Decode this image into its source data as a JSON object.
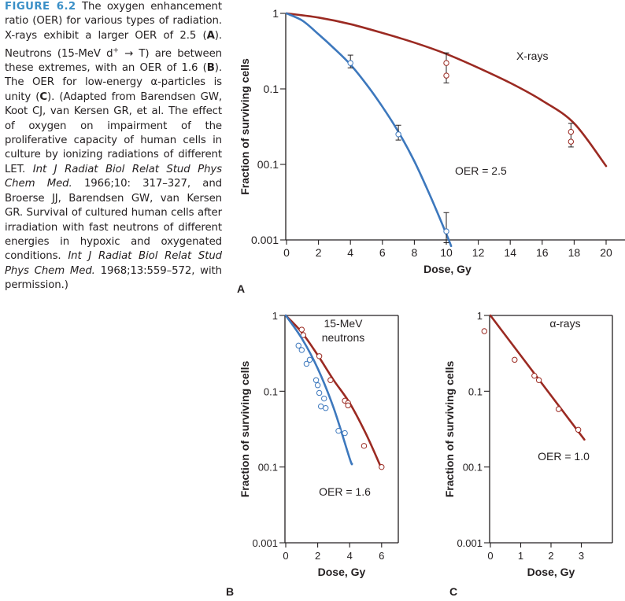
{
  "caption": {
    "figure_label": "FIGURE 6.2",
    "parts": [
      {
        "t": " The oxygen enhancement ratio (OER) for various types of radiation. X-rays exhibit a larger OER of 2.5 ("
      },
      {
        "t": "A",
        "b": true
      },
      {
        "t": "). Neutrons (15-MeV d"
      },
      {
        "t": "+",
        "sup": true
      },
      {
        "t": " → T) are between these extremes, with an OER of 1.6 ("
      },
      {
        "t": "B",
        "b": true
      },
      {
        "t": "). The OER for low-energy α-particles is unity ("
      },
      {
        "t": "C",
        "b": true
      },
      {
        "t": "). (Adapted from Barendsen GW, Koot CJ, van Kersen GR, et al. The effect of oxygen on impairment of the proliferative capacity of human cells in culture by ionizing radiations of different LET. "
      },
      {
        "t": "Int J Radiat Biol Relat Stud Phys Chem Med.",
        "i": true
      },
      {
        "t": " 1966;10: 317–327, and Broerse JJ, Barendsen GW, van Kersen GR. Survival of cultured human cells after irradiation with fast neutrons of different energies in hypoxic and oxygenated conditions. "
      },
      {
        "t": "Int J Radiat Biol Relat Stud Phys Chem Med.",
        "i": true
      },
      {
        "t": " 1968;13:559–572, with permission.)"
      }
    ]
  },
  "colors": {
    "red": "#9b2a22",
    "blue": "#3d78bd",
    "axis": "#231f20"
  },
  "chart_data": [
    {
      "panel": "A",
      "type": "line",
      "xlabel": "Dose, Gy",
      "ylabel": "Fraction of surviving cells",
      "xlim": [
        0,
        21
      ],
      "ylim": [
        0.001,
        1
      ],
      "log_y": true,
      "x_ticks": [
        "0",
        "2",
        "4",
        "6",
        "8",
        "10",
        "12",
        "14",
        "16",
        "18",
        "20"
      ],
      "y_ticks": [
        "1",
        "0.1",
        "00.1",
        "0.001"
      ],
      "annotations": [
        "X-rays",
        "OER = 2.5"
      ],
      "series": [
        {
          "color": "red",
          "curve": [
            [
              0,
              1
            ],
            [
              2,
              0.88
            ],
            [
              4,
              0.72
            ],
            [
              6,
              0.55
            ],
            [
              8,
              0.41
            ],
            [
              10,
              0.29
            ],
            [
              12,
              0.19
            ],
            [
              14,
              0.12
            ],
            [
              16,
              0.07
            ],
            [
              18,
              0.035
            ],
            [
              20,
              0.0095
            ]
          ],
          "points": [
            [
              10,
              0.22
            ],
            [
              10,
              0.15
            ],
            [
              17.8,
              0.027
            ],
            [
              17.8,
              0.02
            ]
          ],
          "error_bars": [
            [
              10,
              0.3,
              0.12
            ],
            [
              17.8,
              0.035,
              0.017
            ]
          ]
        },
        {
          "color": "blue",
          "curve": [
            [
              0,
              1
            ],
            [
              1,
              0.8
            ],
            [
              2,
              0.53
            ],
            [
              3,
              0.34
            ],
            [
              4,
              0.21
            ],
            [
              5,
              0.115
            ],
            [
              6,
              0.058
            ],
            [
              7,
              0.027
            ],
            [
              8,
              0.011
            ],
            [
              9,
              0.0038
            ],
            [
              10,
              0.0012
            ],
            [
              10.3,
              0.00083
            ]
          ],
          "points": [
            [
              4,
              0.22
            ],
            [
              7,
              0.025
            ],
            [
              10,
              0.0013
            ]
          ],
          "error_bars": [
            [
              4,
              0.28,
              0.19
            ],
            [
              7,
              0.033,
              0.021
            ],
            [
              10,
              0.0023,
              0.00092
            ]
          ]
        }
      ]
    },
    {
      "panel": "B",
      "type": "line",
      "xlabel": "Dose, Gy",
      "ylabel": "Fraction of surviving cells",
      "xlim": [
        0,
        8
      ],
      "ylim": [
        0.001,
        1
      ],
      "log_y": true,
      "x_ticks": [
        "0",
        "2",
        "4",
        "6"
      ],
      "y_ticks": [
        "1",
        "0.1",
        "00.1",
        "0.001"
      ],
      "annotations": [
        "15-MeV",
        "neutrons",
        "OER = 1.6"
      ],
      "series": [
        {
          "color": "red",
          "curve": [
            [
              0,
              1
            ],
            [
              1,
              0.6
            ],
            [
              2,
              0.3
            ],
            [
              3,
              0.14
            ],
            [
              4,
              0.07
            ],
            [
              5,
              0.028
            ],
            [
              6,
              0.0095
            ]
          ],
          "points": [
            [
              1,
              0.65
            ],
            [
              1.1,
              0.55
            ],
            [
              2.1,
              0.29
            ],
            [
              2.8,
              0.14
            ],
            [
              3.7,
              0.075
            ],
            [
              3.9,
              0.07
            ],
            [
              3.9,
              0.065
            ],
            [
              4.9,
              0.019
            ],
            [
              6,
              0.01
            ]
          ]
        },
        {
          "color": "blue",
          "curve": [
            [
              0,
              1
            ],
            [
              1,
              0.5
            ],
            [
              2,
              0.2
            ],
            [
              3,
              0.06
            ],
            [
              4,
              0.013
            ],
            [
              4.15,
              0.011
            ]
          ],
          "points": [
            [
              0.8,
              0.4
            ],
            [
              1,
              0.35
            ],
            [
              1.3,
              0.23
            ],
            [
              1.5,
              0.26
            ],
            [
              1.9,
              0.14
            ],
            [
              2,
              0.12
            ],
            [
              2.1,
              0.095
            ],
            [
              2.4,
              0.08
            ],
            [
              2.2,
              0.063
            ],
            [
              2.5,
              0.06
            ],
            [
              3.3,
              0.03
            ],
            [
              3.7,
              0.028
            ]
          ]
        }
      ]
    },
    {
      "panel": "C",
      "type": "line",
      "xlabel": "Dose, Gy",
      "ylabel": "Fraction of surviving cells",
      "xlim": [
        0,
        4
      ],
      "ylim": [
        0.001,
        1
      ],
      "log_y": true,
      "x_ticks": [
        "0",
        "1",
        "2",
        "3"
      ],
      "y_ticks": [
        "1",
        "0.1",
        "00.1",
        "0.001"
      ],
      "annotations": [
        "α-rays",
        "OER = 1.0"
      ],
      "series": [
        {
          "color": "red",
          "curve": [
            [
              0,
              1
            ],
            [
              3.1,
              0.023
            ]
          ],
          "points": [
            [
              -0.2,
              0.62
            ],
            [
              0.8,
              0.26
            ],
            [
              1.45,
              0.16
            ],
            [
              1.6,
              0.14
            ],
            [
              2.25,
              0.058
            ],
            [
              2.9,
              0.031
            ]
          ]
        }
      ]
    }
  ]
}
